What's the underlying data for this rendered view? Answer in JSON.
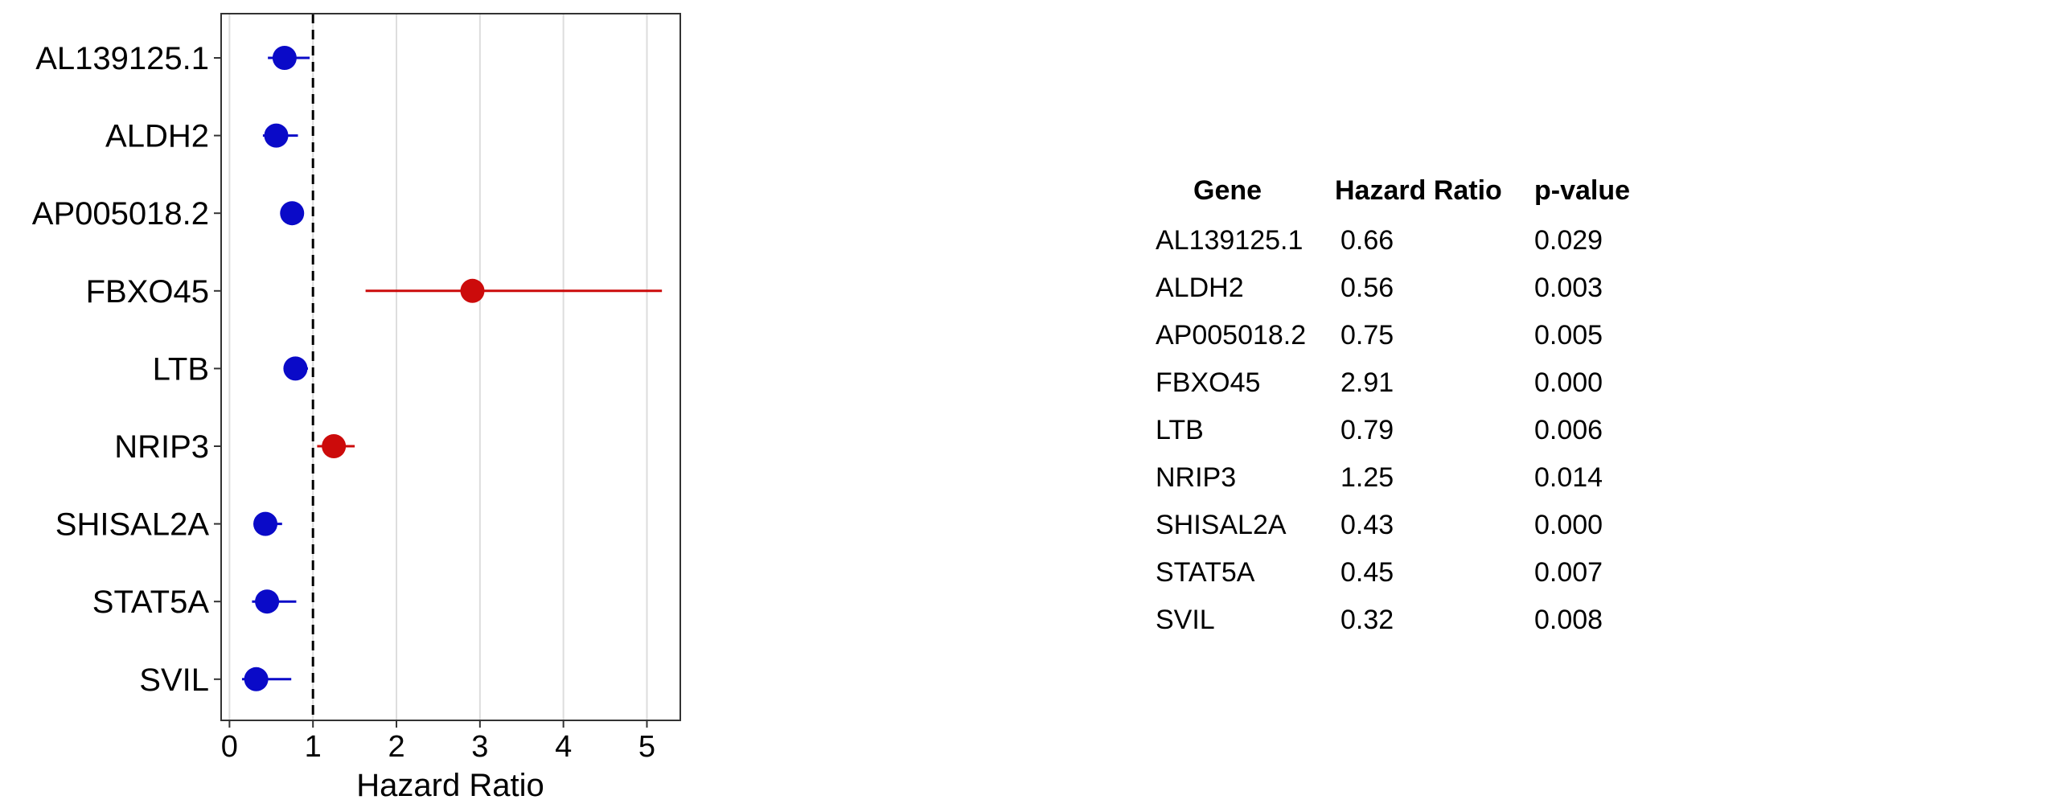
{
  "chart_data": {
    "type": "scatter",
    "subtype": "forest-plot",
    "xlabel": "Hazard Ratio",
    "xlim": [
      -0.1,
      5.4
    ],
    "xticks": [
      0,
      1,
      2,
      3,
      4,
      5
    ],
    "reference_line": 1,
    "grid": "vertical-major",
    "categories": [
      "AL139125.1",
      "ALDH2",
      "AP005018.2",
      "FBXO45",
      "LTB",
      "NRIP3",
      "SHISAL2A",
      "STAT5A",
      "SVIL"
    ],
    "values": [
      0.66,
      0.56,
      0.75,
      2.91,
      0.79,
      1.25,
      0.43,
      0.45,
      0.32
    ],
    "lower": [
      0.46,
      0.4,
      0.66,
      1.63,
      0.68,
      1.05,
      0.3,
      0.27,
      0.15
    ],
    "upper": [
      0.96,
      0.82,
      0.86,
      5.18,
      0.94,
      1.5,
      0.63,
      0.8,
      0.74
    ],
    "colors": {
      "protective": "#0a0ac8",
      "risk": "#cc0b0b"
    }
  },
  "table": {
    "headers": [
      "Gene",
      "Hazard Ratio",
      "p-value"
    ],
    "rows": [
      {
        "gene": "AL139125.1",
        "hr": "0.66",
        "p": "0.029"
      },
      {
        "gene": "ALDH2",
        "hr": "0.56",
        "p": "0.003"
      },
      {
        "gene": "AP005018.2",
        "hr": "0.75",
        "p": "0.005"
      },
      {
        "gene": "FBXO45",
        "hr": "2.91",
        "p": "0.000"
      },
      {
        "gene": "LTB",
        "hr": "0.79",
        "p": "0.006"
      },
      {
        "gene": "NRIP3",
        "hr": "1.25",
        "p": "0.014"
      },
      {
        "gene": "SHISAL2A",
        "hr": "0.43",
        "p": "0.000"
      },
      {
        "gene": "STAT5A",
        "hr": "0.45",
        "p": "0.007"
      },
      {
        "gene": "SVIL",
        "hr": "0.32",
        "p": "0.008"
      }
    ]
  }
}
